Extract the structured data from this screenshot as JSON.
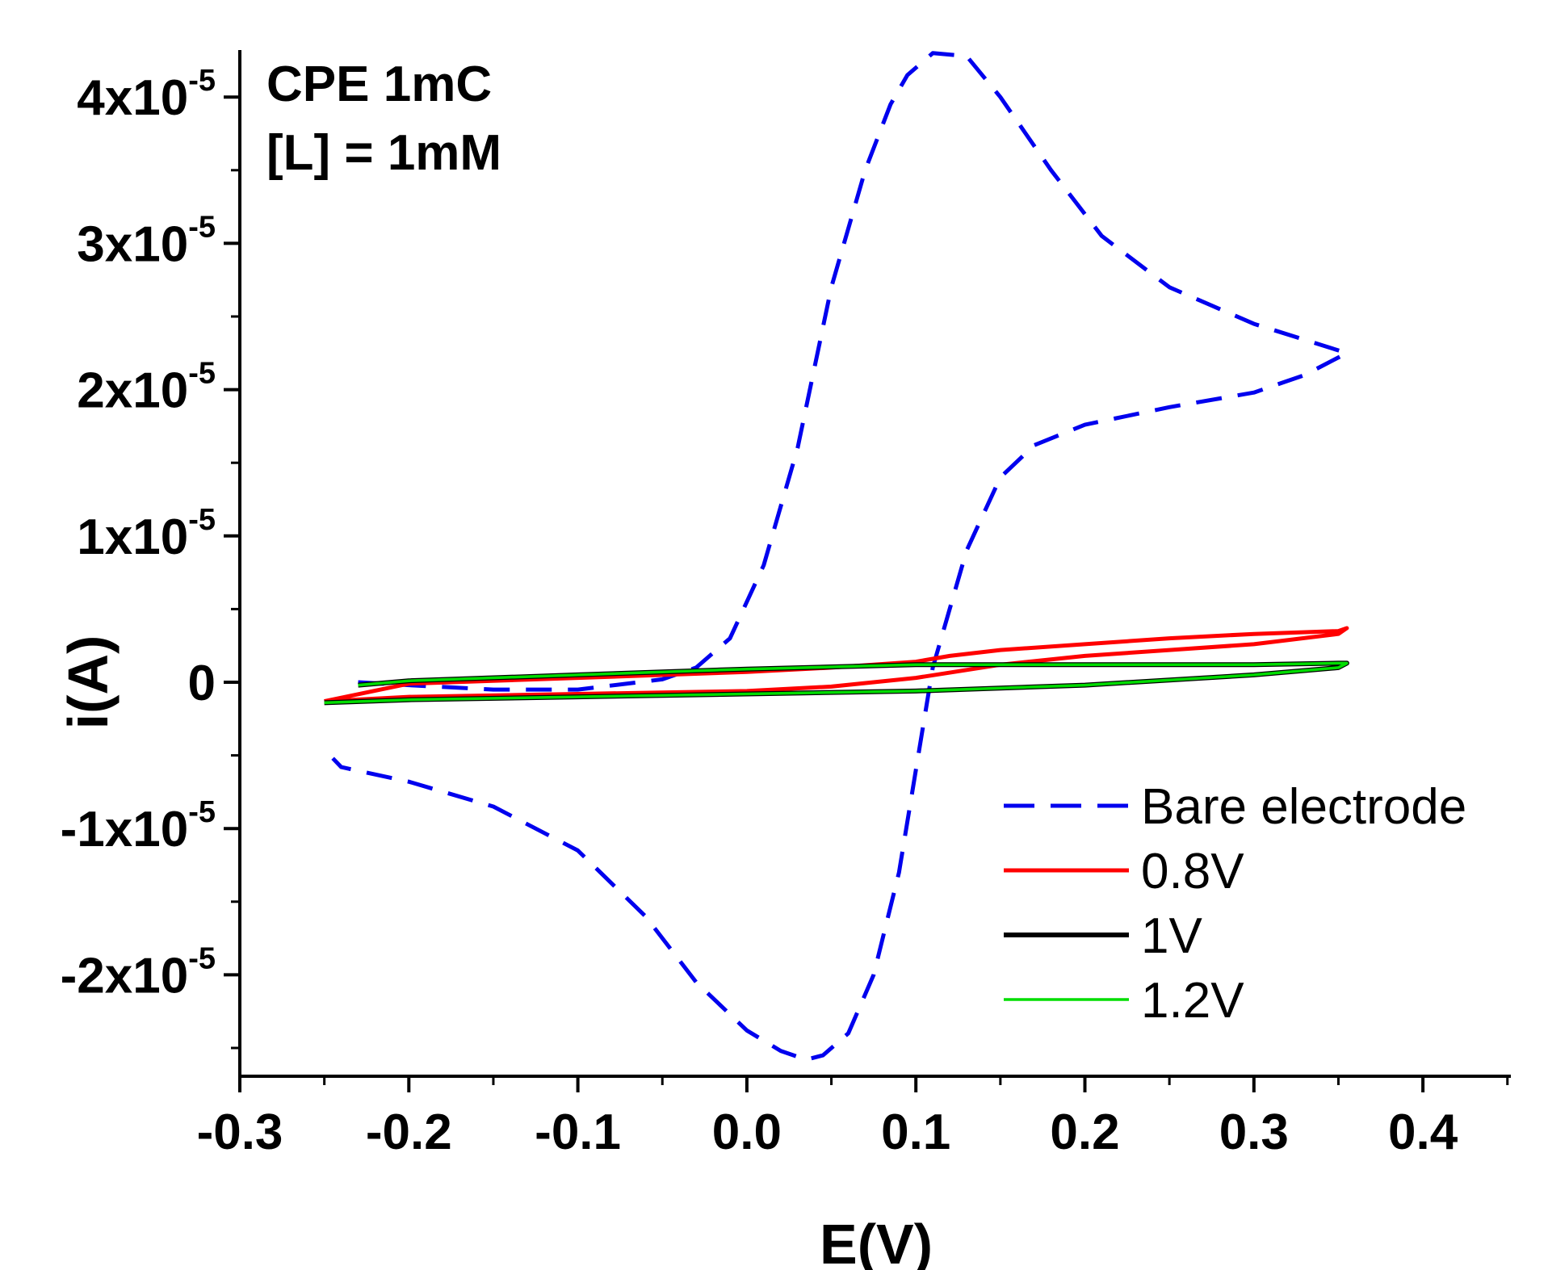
{
  "chart_data": {
    "type": "line",
    "title": "",
    "xlabel": "E(V)",
    "ylabel": "i(A)",
    "xlim": [
      -0.3,
      0.45
    ],
    "ylim": [
      -2.7e-05,
      4.3e-05
    ],
    "x_ticks": [
      {
        "value": -0.3,
        "label": "-0.3"
      },
      {
        "value": -0.2,
        "label": "-0.2"
      },
      {
        "value": -0.1,
        "label": "-0.1"
      },
      {
        "value": 0.0,
        "label": "0.0"
      },
      {
        "value": 0.1,
        "label": "0.1"
      },
      {
        "value": 0.2,
        "label": "0.2"
      },
      {
        "value": 0.3,
        "label": "0.3"
      },
      {
        "value": 0.4,
        "label": "0.4"
      }
    ],
    "y_ticks": [
      {
        "value": 4e-05,
        "mant": "4x10",
        "exp": "-5"
      },
      {
        "value": 3e-05,
        "mant": "3x10",
        "exp": "-5"
      },
      {
        "value": 2e-05,
        "mant": "2x10",
        "exp": "-5"
      },
      {
        "value": 1e-05,
        "mant": "1x10",
        "exp": "-5"
      },
      {
        "value": 0,
        "mant": "0",
        "exp": ""
      },
      {
        "value": -1e-05,
        "mant": "-1x10",
        "exp": "-5"
      },
      {
        "value": -2e-05,
        "mant": "-2x10",
        "exp": "-5"
      }
    ],
    "annotations": [
      "CPE 1mC",
      "[L] = 1mM"
    ],
    "legend_position": "bottom-right",
    "series": [
      {
        "name": "Bare electrode",
        "color": "#0000ee",
        "dash": "dashed",
        "x": [
          -0.23,
          -0.2,
          -0.15,
          -0.1,
          -0.05,
          -0.03,
          -0.01,
          0.01,
          0.03,
          0.05,
          0.07,
          0.085,
          0.095,
          0.11,
          0.13,
          0.15,
          0.18,
          0.21,
          0.25,
          0.3,
          0.355,
          0.33,
          0.3,
          0.25,
          0.2,
          0.17,
          0.15,
          0.13,
          0.11,
          0.1,
          0.09,
          0.075,
          0.06,
          0.045,
          0.035,
          0.02,
          0.0,
          -0.03,
          -0.06,
          -0.1,
          -0.15,
          -0.2,
          -0.24,
          -0.245
        ],
        "y": [
          0.0,
          -2e-07,
          -5e-07,
          -5e-07,
          2e-07,
          1e-06,
          3e-06,
          8e-06,
          1.6e-05,
          2.7e-05,
          3.5e-05,
          3.95e-05,
          4.15e-05,
          4.3e-05,
          4.28e-05,
          4e-05,
          3.5e-05,
          3.05e-05,
          2.7e-05,
          2.45e-05,
          2.25e-05,
          2.1e-05,
          1.98e-05,
          1.88e-05,
          1.76e-05,
          1.62e-05,
          1.4e-05,
          9e-06,
          1e-06,
          -6e-06,
          -1.3e-05,
          -2e-05,
          -2.4e-05,
          -2.55e-05,
          -2.58e-05,
          -2.52e-05,
          -2.38e-05,
          -2.05e-05,
          -1.6e-05,
          -1.15e-05,
          -8.5e-06,
          -6.8e-06,
          -5.8e-06,
          -5.2e-06
        ]
      },
      {
        "name": "0.8V",
        "color": "#ff0000",
        "dash": "solid",
        "x": [
          -0.25,
          -0.2,
          -0.1,
          0.0,
          0.05,
          0.1,
          0.15,
          0.2,
          0.25,
          0.3,
          0.35,
          0.355,
          0.35,
          0.3,
          0.25,
          0.2,
          0.15,
          0.12,
          0.1,
          0.05,
          0.0,
          -0.1,
          -0.2,
          -0.25
        ],
        "y": [
          -1.3e-06,
          -1e-06,
          -8e-07,
          -6e-07,
          -3e-07,
          3e-07,
          1.2e-06,
          1.8e-06,
          2.2e-06,
          2.6e-06,
          3.3e-06,
          3.7e-06,
          3.5e-06,
          3.3e-06,
          3e-06,
          2.6e-06,
          2.2e-06,
          1.8e-06,
          1.4e-06,
          1e-06,
          7e-07,
          3e-07,
          -1e-07,
          -1.3e-06
        ]
      },
      {
        "name": "1V",
        "color": "#000000",
        "dash": "solid",
        "x": [
          -0.25,
          -0.2,
          -0.1,
          0.0,
          0.1,
          0.2,
          0.3,
          0.35,
          0.355,
          0.35,
          0.3,
          0.2,
          0.1,
          0.0,
          -0.1,
          -0.2,
          -0.23
        ],
        "y": [
          -1.4e-06,
          -1.2e-06,
          -1e-06,
          -8e-07,
          -6e-07,
          -2e-07,
          5e-07,
          1e-06,
          1.3e-06,
          1.3e-06,
          1.2e-06,
          1.2e-06,
          1.2e-06,
          9e-07,
          5e-07,
          1e-07,
          -2e-07
        ]
      },
      {
        "name": "1.2V",
        "color": "#00dd00",
        "dash": "solid",
        "x": [
          -0.25,
          -0.2,
          -0.1,
          0.0,
          0.1,
          0.2,
          0.3,
          0.35,
          0.355,
          0.35,
          0.3,
          0.2,
          0.1,
          0.0,
          -0.1,
          -0.2,
          -0.23
        ],
        "y": [
          -1.4e-06,
          -1.2e-06,
          -1e-06,
          -8e-07,
          -6e-07,
          -2e-07,
          5e-07,
          1e-06,
          1.3e-06,
          1.3e-06,
          1.2e-06,
          1.2e-06,
          1.2e-06,
          9e-07,
          5e-07,
          1e-07,
          -2e-07
        ]
      }
    ]
  }
}
